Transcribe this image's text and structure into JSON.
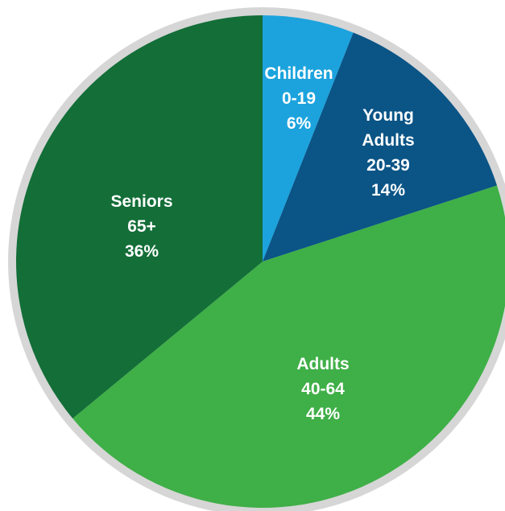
{
  "chart_data": {
    "type": "pie",
    "title": "",
    "start_angle_deg": 0,
    "direction": "clockwise",
    "slices": [
      {
        "label_lines": [
          "Children",
          "0-19",
          "6%"
        ],
        "value": 6,
        "color": "#1ca3dd",
        "label_color": "#ffffff"
      },
      {
        "label_lines": [
          "Young",
          "Adults",
          "20-39",
          "14%"
        ],
        "value": 14,
        "color": "#0a5486",
        "label_color": "#ffffff"
      },
      {
        "label_lines": [
          "Adults",
          "40-64",
          "44%"
        ],
        "value": 44,
        "color": "#3faf47",
        "label_color": "#ffffff"
      },
      {
        "label_lines": [
          "Seniors",
          "65+",
          "36%"
        ],
        "value": 36,
        "color": "#136e38",
        "label_color": "#ffffff"
      }
    ],
    "outer_ring_color": "#d6d6d6"
  }
}
